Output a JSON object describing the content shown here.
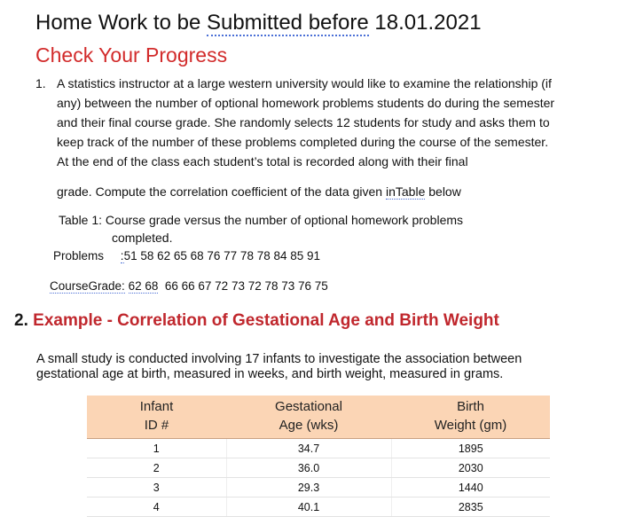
{
  "header": {
    "title_prefix": "Home Work to be ",
    "title_underlined": "Submitted  before",
    "title_suffix": " 18.01.2021"
  },
  "progress_heading": "Check Your Progress",
  "question1": {
    "number": "1.",
    "lines": [
      "A statistics instructor at a large western university would like to examine the relationship (if",
      "any) between the number of optional homework problems students do during the semester",
      "and their final course grade. She randomly selects 12 students for study and asks them to",
      "keep track of the number of these problems completed during the course of the semester.",
      "At the end of the class each student’s total is recorded along with their final"
    ],
    "compute_prefix": "grade. Compute the correlation coefficient of the data given ",
    "compute_link": "inTable",
    "compute_suffix": " below",
    "table_caption_1": "Table 1: Course grade versus the number of optional homework problems",
    "table_caption_2": "completed.",
    "problems_label": "Problems",
    "problems_sep": ":",
    "problems_values": "51 58 62 65 68   76 77 78 78   84 85 91",
    "grade_label": "CourseGrade:",
    "grade_underlined": "62 68",
    "grade_values": "66 66 67  72 73 72  78 73  76 75"
  },
  "section2": {
    "number": "2.",
    "title": "Example - Correlation of Gestational Age and Birth Weight",
    "para_line1": "A small study is conducted involving 17 infants to investigate the association between",
    "para_line2": "gestational age at birth, measured in weeks, and birth weight, measured in grams."
  },
  "table": {
    "headers": [
      [
        "Infant",
        "ID #"
      ],
      [
        "Gestational",
        "Age (wks)"
      ],
      [
        "Birth",
        "Weight (gm)"
      ]
    ],
    "rows": [
      [
        "1",
        "34.7",
        "1895"
      ],
      [
        "2",
        "36.0",
        "2030"
      ],
      [
        "3",
        "29.3",
        "1440"
      ],
      [
        "4",
        "40.1",
        "2835"
      ]
    ]
  },
  "colors": {
    "progress_heading": "#d22b2b",
    "section_title": "#c0272d",
    "table_header_bg": "#fbd5b5"
  }
}
